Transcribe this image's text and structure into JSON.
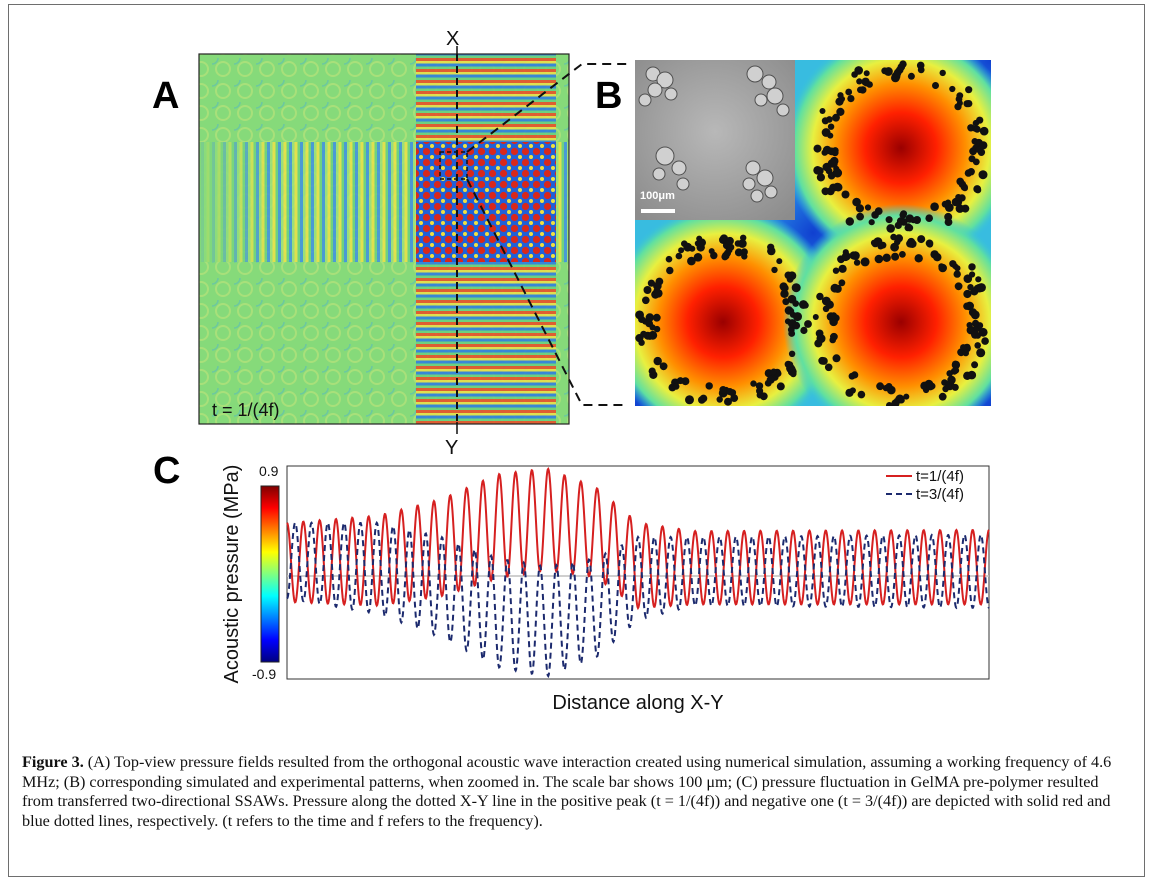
{
  "panels": {
    "a_letter": "A",
    "b_letter": "B",
    "c_letter": "C",
    "x_marker": "X",
    "y_marker": "Y",
    "time_label": "t = 1/(4f)",
    "scale_bar": "100μm"
  },
  "colorbar": {
    "max_label": "0.9",
    "min_label": "-0.9",
    "colors": [
      "#7f0000",
      "#ff0000",
      "#ff8000",
      "#ffff00",
      "#80ff80",
      "#00ffff",
      "#0080ff",
      "#0000ff",
      "#000080"
    ]
  },
  "chart_data": {
    "type": "line",
    "xlabel": "Distance along X-Y",
    "ylabel": "Acoustic pressure (MPa)",
    "ylim": [
      -0.9,
      0.9
    ],
    "x_range": [
      0,
      1
    ],
    "grid": false,
    "legend_position": "top-right",
    "series": [
      {
        "name": "t=1/(4f)",
        "color": "#d62020",
        "style": "solid",
        "cycles": 43,
        "envelope": [
          {
            "x": 0.0,
            "max": 0.42,
            "min": -0.25
          },
          {
            "x": 0.13,
            "max": 0.48,
            "min": -0.28
          },
          {
            "x": 0.22,
            "max": 0.62,
            "min": -0.2
          },
          {
            "x": 0.3,
            "max": 0.83,
            "min": -0.05
          },
          {
            "x": 0.37,
            "max": 0.88,
            "min": 0.02
          },
          {
            "x": 0.44,
            "max": 0.72,
            "min": -0.04
          },
          {
            "x": 0.5,
            "max": 0.42,
            "min": -0.3
          },
          {
            "x": 0.58,
            "max": 0.35,
            "min": -0.27
          },
          {
            "x": 1.0,
            "max": 0.36,
            "min": -0.27
          }
        ]
      },
      {
        "name": "t=3/(4f)",
        "color": "#1c2a6e",
        "style": "dashed",
        "cycles": 43,
        "envelope": [
          {
            "x": 0.0,
            "max": 0.42,
            "min": -0.22
          },
          {
            "x": 0.13,
            "max": 0.42,
            "min": -0.35
          },
          {
            "x": 0.22,
            "max": 0.3,
            "min": -0.55
          },
          {
            "x": 0.3,
            "max": 0.12,
            "min": -0.8
          },
          {
            "x": 0.37,
            "max": 0.05,
            "min": -0.88
          },
          {
            "x": 0.44,
            "max": 0.12,
            "min": -0.72
          },
          {
            "x": 0.5,
            "max": 0.3,
            "min": -0.4
          },
          {
            "x": 0.58,
            "max": 0.3,
            "min": -0.28
          },
          {
            "x": 1.0,
            "max": 0.32,
            "min": -0.3
          }
        ]
      }
    ]
  },
  "caption": {
    "label": "Figure 3.",
    "body": " (A) Top-view pressure fields resulted from the orthogonal acoustic wave interaction created using numerical simulation, assuming a working frequency of 4.6 MHz; (B) corresponding simulated and experimental patterns, when zoomed in. The scale bar shows 100 μm; (C) pressure fluctuation in GelMA pre-polymer resulted from transferred two-directional SSAWs. Pressure along the dotted X-Y line in the positive peak (t = 1/(4f)) and negative one (t = 3/(4f)) are depicted with solid red and blue dotted lines, respectively. (t refers to the time and f refers to the frequency)."
  }
}
